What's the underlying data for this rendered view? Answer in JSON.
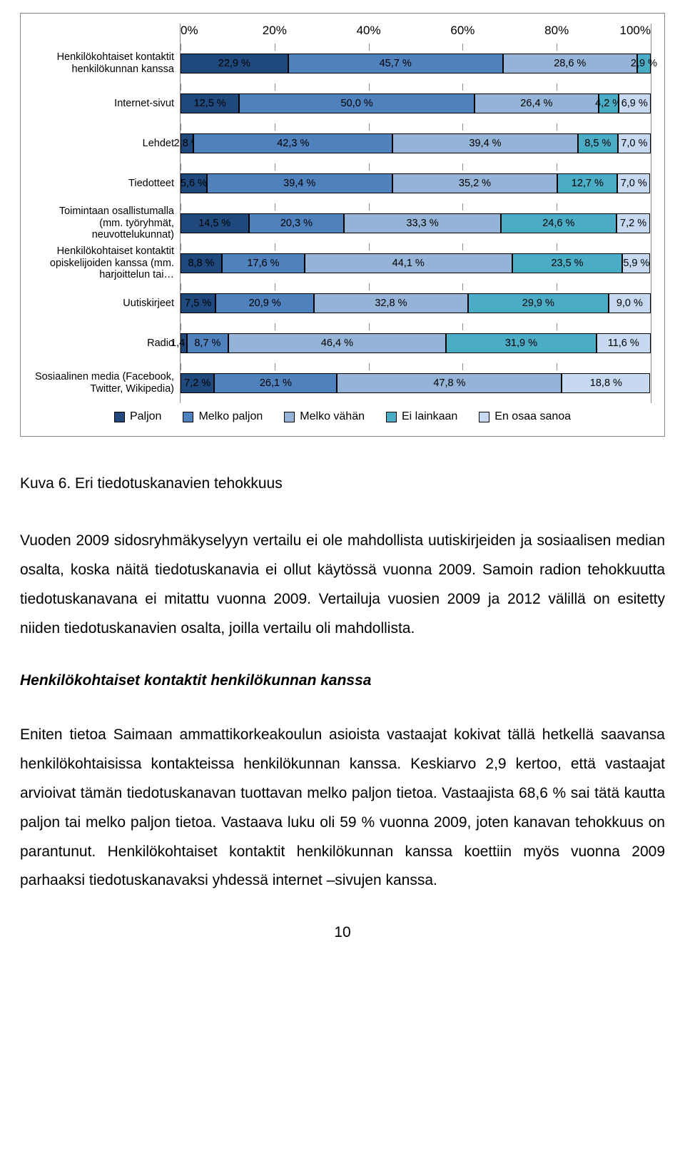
{
  "chart": {
    "type": "stacked-horizontal-bar",
    "axis_labels": [
      "0%",
      "20%",
      "40%",
      "60%",
      "80%",
      "100%"
    ],
    "legend": [
      "Paljon",
      "Melko paljon",
      "Melko vähän",
      "Ei lainkaan",
      "En osaa sanoa"
    ],
    "colors": [
      "#1f497d",
      "#4f81bd",
      "#95b3d7",
      "#4bacc6",
      "#c6d9f1"
    ],
    "grid_color": "#888888",
    "background_color": "#ffffff",
    "rows": [
      {
        "label": "Henkilökohtaiset kontaktit henkilökunnan kanssa",
        "values": [
          22.9,
          45.7,
          28.6,
          2.9,
          0.0
        ],
        "text": [
          "22,9 %",
          "45,7 %",
          "28,6 %",
          "2,9 %",
          ""
        ]
      },
      {
        "label": "Internet-sivut",
        "values": [
          12.5,
          50.0,
          26.4,
          4.2,
          6.9
        ],
        "text": [
          "12,5 %",
          "50,0 %",
          "26,4 %",
          "4,2 %",
          "6,9 %"
        ]
      },
      {
        "label": "Lehdet",
        "values": [
          2.8,
          42.3,
          39.4,
          8.5,
          7.0
        ],
        "text": [
          "2,8 %",
          "42,3 %",
          "39,4 %",
          "8,5 %",
          "7,0 %"
        ]
      },
      {
        "label": "Tiedotteet",
        "values": [
          5.6,
          39.4,
          35.2,
          12.7,
          7.0
        ],
        "text": [
          "5,6 %",
          "39,4 %",
          "35,2 %",
          "12,7 %",
          "7,0 %"
        ]
      },
      {
        "label": "Toimintaan osallistumalla (mm. työryhmät, neuvottelukunnat)",
        "values": [
          14.5,
          20.3,
          33.3,
          24.6,
          7.2
        ],
        "text": [
          "14,5 %",
          "20,3 %",
          "33,3 %",
          "24,6 %",
          "7,2 %"
        ]
      },
      {
        "label": "Henkilökohtaiset kontaktit opiskelijoiden kanssa (mm. harjoittelun tai…",
        "values": [
          8.8,
          17.6,
          44.1,
          23.5,
          5.9
        ],
        "text": [
          "8,8 %",
          "17,6 %",
          "44,1 %",
          "23,5 %",
          "5,9 %"
        ]
      },
      {
        "label": "Uutiskirjeet",
        "values": [
          7.5,
          20.9,
          32.8,
          29.9,
          9.0
        ],
        "text": [
          "7,5 %",
          "20,9 %",
          "32,8 %",
          "29,9 %",
          "9,0 %"
        ]
      },
      {
        "label": "Radio",
        "values": [
          1.4,
          8.7,
          46.4,
          31.9,
          11.6
        ],
        "text": [
          "1,4 %",
          "8,7 %",
          "46,4 %",
          "31,9 %",
          "11,6 %"
        ]
      },
      {
        "label": "Sosiaalinen media (Facebook, Twitter, Wikipedia)",
        "values": [
          7.2,
          26.1,
          47.8,
          0.0,
          18.8
        ],
        "text": [
          "7,2 %",
          "26,1 %",
          "47,8 %",
          "",
          "18,8 %"
        ]
      }
    ]
  },
  "caption": "Kuva 6. Eri tiedotuskanavien tehokkuus",
  "paragraph1": "Vuoden 2009 sidosryhmäkyselyyn vertailu ei ole mahdollista uutiskirjeiden ja sosiaalisen median osalta, koska näitä tiedotuskanavia ei ollut käytössä vuonna 2009. Samoin radion tehokkuutta tiedotuskanavana ei mitattu vuonna 2009. Vertailuja vuosien 2009 ja 2012 välillä on esitetty niiden tiedotuskanavien osalta, joilla vertailu oli mahdollista.",
  "heading": "Henkilökohtaiset kontaktit henkilökunnan kanssa",
  "paragraph2": "Eniten tietoa Saimaan ammattikorkeakoulun asioista vastaajat kokivat tällä hetkellä saavansa henkilökohtaisissa kontakteissa henkilökunnan kanssa. Keskiarvo 2,9 kertoo, että vastaajat arvioivat tämän tiedotuskanavan tuottavan melko paljon tietoa. Vastaajista 68,6 % sai tätä kautta paljon tai melko paljon tietoa. Vastaava luku oli 59 % vuonna 2009, joten kanavan tehokkuus on parantunut. Henkilökohtaiset kontaktit henkilökunnan kanssa koettiin myös vuonna 2009 parhaaksi tiedotuskanavaksi yhdessä internet –sivujen kanssa.",
  "page_number": "10"
}
